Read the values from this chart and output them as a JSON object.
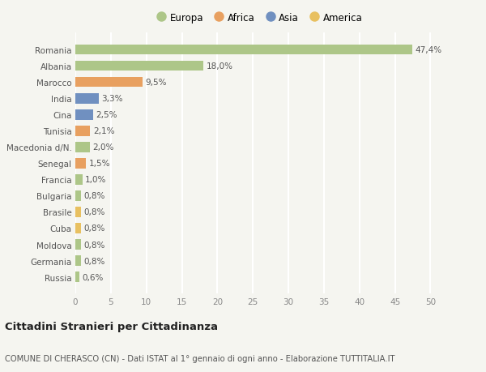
{
  "categories": [
    "Russia",
    "Germania",
    "Moldova",
    "Cuba",
    "Brasile",
    "Bulgaria",
    "Francia",
    "Senegal",
    "Macedonia d/N.",
    "Tunisia",
    "Cina",
    "India",
    "Marocco",
    "Albania",
    "Romania"
  ],
  "values": [
    0.6,
    0.8,
    0.8,
    0.8,
    0.8,
    0.8,
    1.0,
    1.5,
    2.0,
    2.1,
    2.5,
    3.3,
    9.5,
    18.0,
    47.4
  ],
  "colors": [
    "#adc688",
    "#adc688",
    "#adc688",
    "#e8c060",
    "#e8c060",
    "#adc688",
    "#adc688",
    "#e8a060",
    "#adc688",
    "#e8a060",
    "#7090c0",
    "#7090c0",
    "#e8a060",
    "#adc688",
    "#adc688"
  ],
  "labels": [
    "0,6%",
    "0,8%",
    "0,8%",
    "0,8%",
    "0,8%",
    "0,8%",
    "1,0%",
    "1,5%",
    "2,0%",
    "2,1%",
    "2,5%",
    "3,3%",
    "9,5%",
    "18,0%",
    "47,4%"
  ],
  "legend": [
    {
      "label": "Europa",
      "color": "#adc688"
    },
    {
      "label": "Africa",
      "color": "#e8a060"
    },
    {
      "label": "Asia",
      "color": "#7090c0"
    },
    {
      "label": "America",
      "color": "#e8c060"
    }
  ],
  "xlim": [
    0,
    52
  ],
  "xticks": [
    0,
    5,
    10,
    15,
    20,
    25,
    30,
    35,
    40,
    45,
    50
  ],
  "title": "Cittadini Stranieri per Cittadinanza",
  "subtitle": "COMUNE DI CHERASCO (CN) - Dati ISTAT al 1° gennaio di ogni anno - Elaborazione TUTTITALIA.IT",
  "bg_color": "#f5f5f0",
  "grid_color": "#ffffff"
}
